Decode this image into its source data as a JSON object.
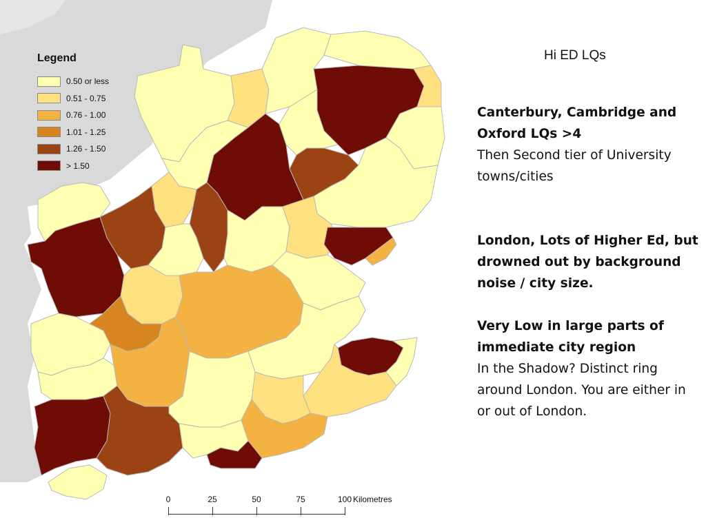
{
  "legend": {
    "title": "Legend",
    "items": [
      {
        "label": "0.50 or less",
        "color": "#ffffb2"
      },
      {
        "label": "0.51 - 0.75",
        "color": "#fee07e"
      },
      {
        "label": "0.76 - 1.00",
        "color": "#f4b242"
      },
      {
        "label": "1.01 - 1.25",
        "color": "#d6851f"
      },
      {
        "label": "1.26 - 1.50",
        "color": "#9c4313"
      },
      {
        "label": "> 1.50",
        "color": "#6e0c05"
      }
    ]
  },
  "scale_bar": {
    "ticks": [
      "0",
      "25",
      "50",
      "75",
      "100"
    ],
    "unit": "Kilometres"
  },
  "slide": {
    "title": "Hi ED LQs",
    "note1_bold": "Canterbury, Cambridge and Oxford LQs >4",
    "note1_text": "Then Second tier of University towns/cities",
    "note2_bold": "London, Lots of Higher Ed, but drowned out by background noise / city size.",
    "note3_bold": "Very Low in large parts of immediate city region",
    "note3_text": "In the Shadow? Distinct ring around London. You are either in or out of London."
  },
  "map": {
    "sea_color": "#d9d9d9",
    "land_color": "#ffffff"
  }
}
